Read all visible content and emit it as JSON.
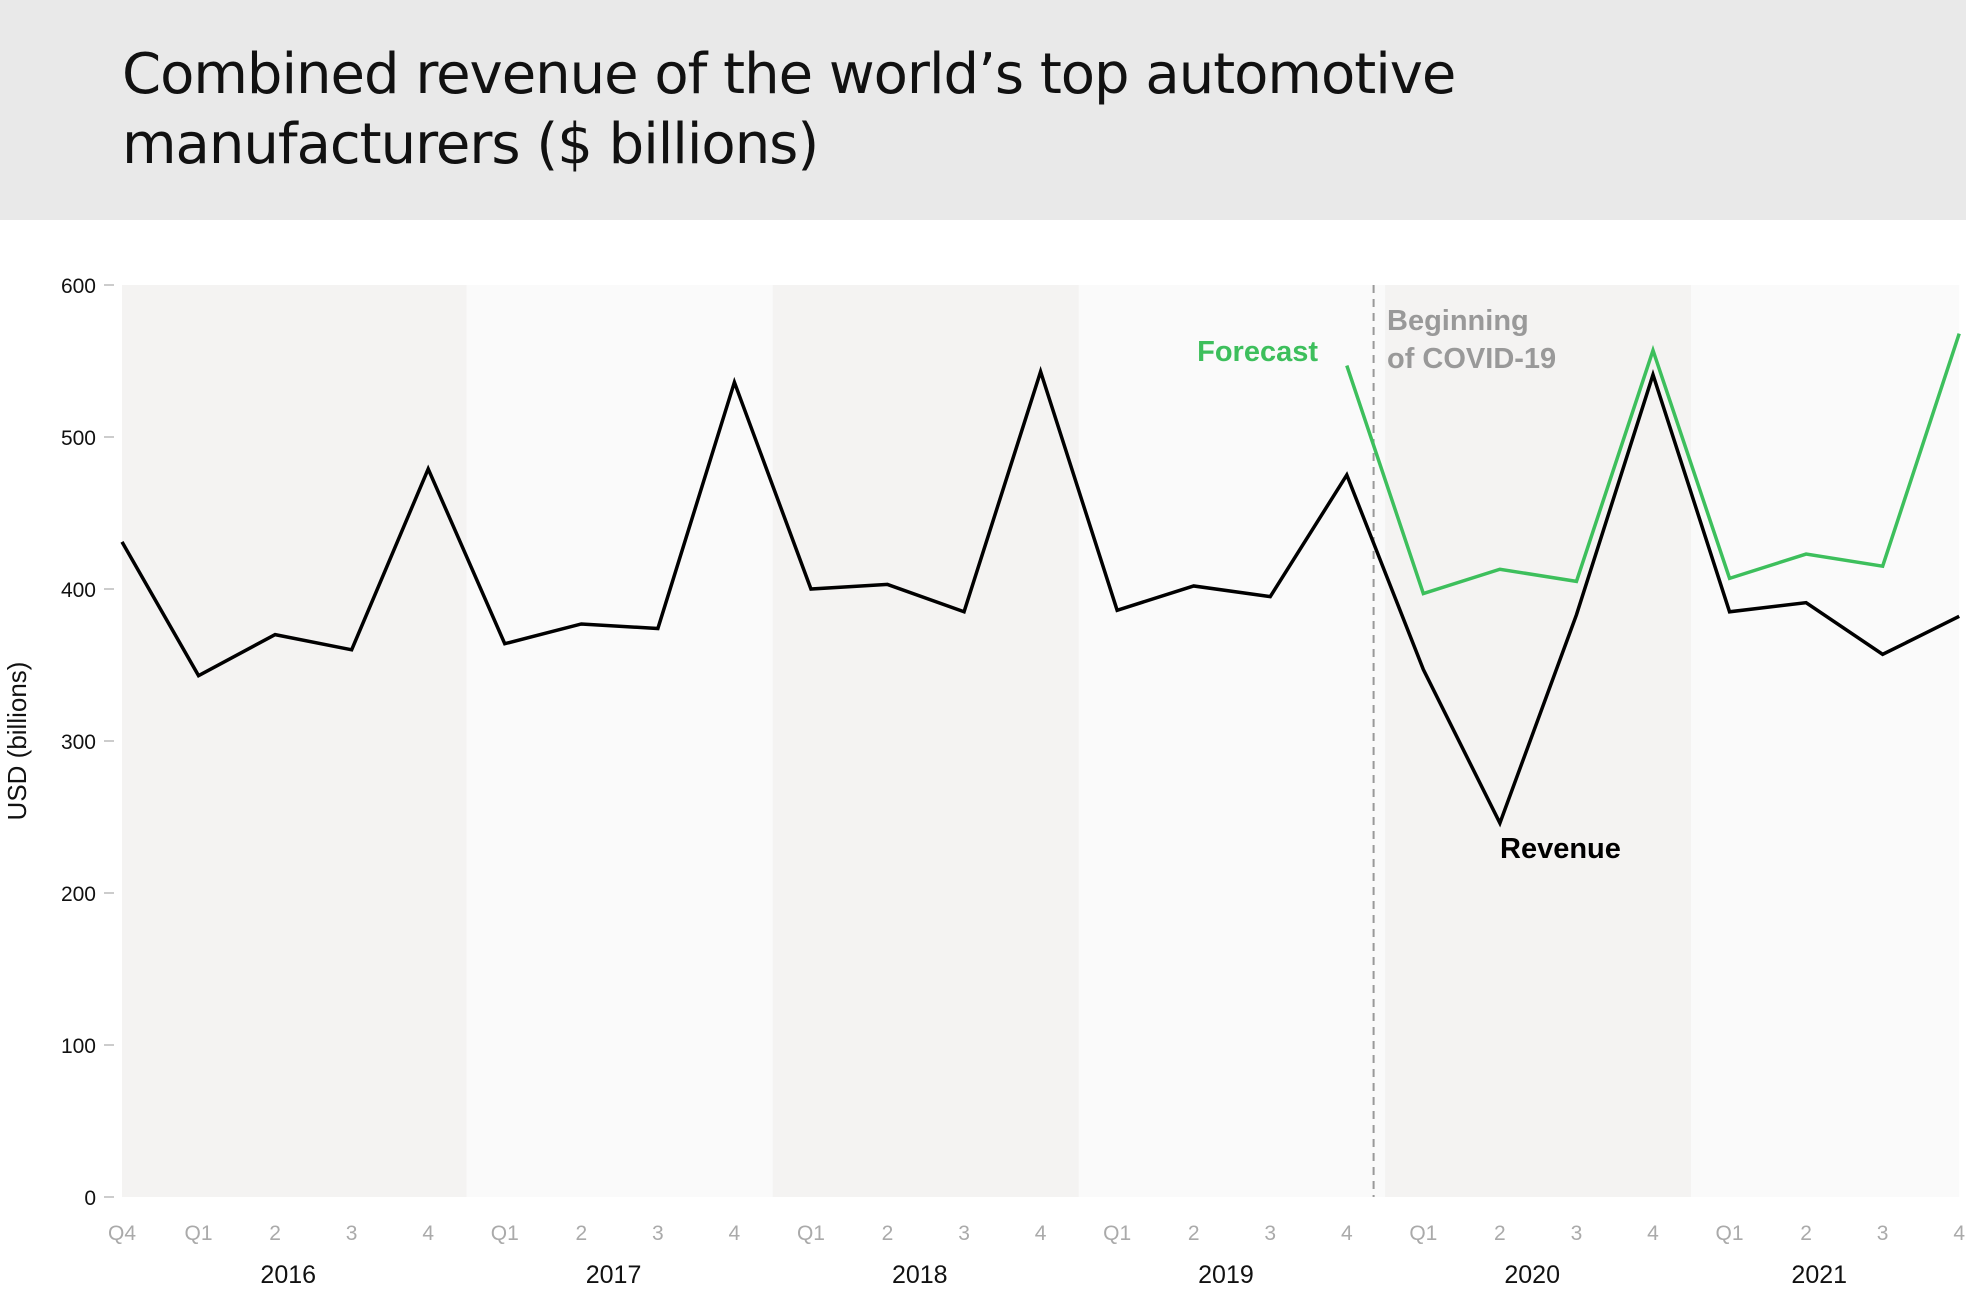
{
  "header": {
    "title": "Combined revenue of the world’s top automotive manufacturers ($ billions)"
  },
  "chart_data": {
    "type": "line",
    "title": "Combined revenue of the world’s top automotive manufacturers ($ billions)",
    "ylabel": "USD (billions)",
    "ylim": [
      0,
      600
    ],
    "yticks": [
      0,
      100,
      200,
      300,
      400,
      500,
      600
    ],
    "grid": false,
    "x_tick_labels": [
      "Q4",
      "Q1",
      "2",
      "3",
      "4",
      "Q1",
      "2",
      "3",
      "4",
      "Q1",
      "2",
      "3",
      "4",
      "Q1",
      "2",
      "3",
      "4",
      "Q1",
      "2",
      "3",
      "4",
      "Q1",
      "2",
      "3",
      "4"
    ],
    "year_groups": [
      {
        "label": "2016",
        "start": 0,
        "end": 4
      },
      {
        "label": "2017",
        "start": 5,
        "end": 8
      },
      {
        "label": "2018",
        "start": 9,
        "end": 12
      },
      {
        "label": "2019",
        "start": 13,
        "end": 16
      },
      {
        "label": "2020",
        "start": 17,
        "end": 20
      },
      {
        "label": "2021",
        "start": 21,
        "end": 24
      }
    ],
    "series": [
      {
        "name": "Revenue",
        "color": "#000000",
        "start_index": 0,
        "values": [
          431,
          343,
          370,
          360,
          479,
          364,
          377,
          374,
          536,
          400,
          403,
          385,
          543,
          386,
          402,
          395,
          475,
          347,
          246,
          383,
          541,
          385,
          391,
          357,
          382
        ]
      },
      {
        "name": "Forecast",
        "color": "#3dbf5c",
        "start_index": 16,
        "values": [
          547,
          397,
          413,
          405,
          557,
          407,
          423,
          415,
          568
        ]
      }
    ],
    "annotations": [
      {
        "text_lines": [
          "Beginning",
          "of COVID-19"
        ],
        "color": "#999999",
        "marker": "dashed vertical line between 2019 Q4 and 2020 Q1"
      }
    ],
    "band_colors": [
      "#f4f3f2",
      "#fafafa"
    ]
  }
}
